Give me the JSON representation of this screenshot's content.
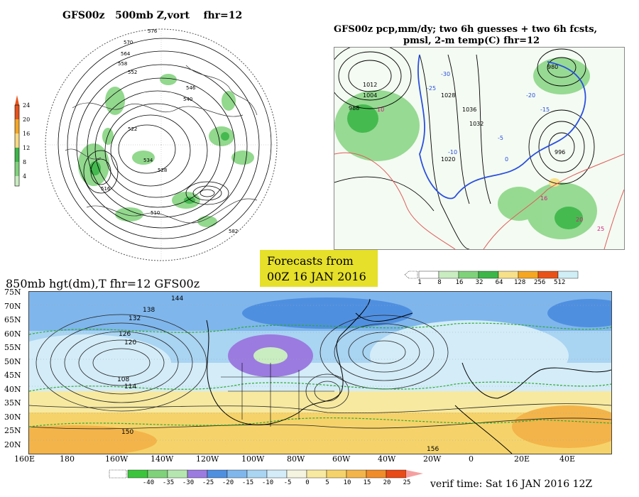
{
  "panel_500mb": {
    "title_a": "GFS00z",
    "title_b": "500mb Z,vort",
    "title_c": "fhr=12",
    "scale_labels": [
      "24",
      "20",
      "16",
      "12",
      "8",
      "4"
    ],
    "scale_colors": [
      "#e8521a",
      "#f5a623",
      "#f7d980",
      "#3cb648",
      "#7fd27a",
      "#c9ecc0"
    ],
    "contour_labels": [
      "576",
      "570",
      "564",
      "558",
      "552",
      "546",
      "540",
      "534",
      "528",
      "522",
      "516",
      "510",
      "582"
    ]
  },
  "panel_precip": {
    "title_line1": "GFS00z pcp,mm/dy; two 6h guesses + two 6h fcsts,",
    "title_line2": "pmsl, 2-m temp(C)  fhr=12",
    "pressure_labels": [
      "1012",
      "1004",
      "996",
      "988",
      "980",
      "1020",
      "1028",
      "1032",
      "1036"
    ],
    "temp_labels": [
      "-30",
      "-25",
      "-20",
      "-15",
      "-10",
      "-5",
      "0",
      "10",
      "16",
      "20",
      "25"
    ],
    "scale_labels": [
      "1",
      "8",
      "16",
      "32",
      "64",
      "128",
      "256",
      "512"
    ],
    "scale_colors": [
      "#ffffff",
      "#c9ecc0",
      "#7fd27a",
      "#3cb648",
      "#f7e08a",
      "#f5a623",
      "#e8521a",
      "#cfeef5"
    ]
  },
  "forecast_box": {
    "line1": "Forecasts from",
    "line2": "00Z 16 JAN 2016"
  },
  "panel_850mb": {
    "title": "850mb hgt(dm),T  fhr=12 GFS00z",
    "lat_labels": [
      "75N",
      "70N",
      "65N",
      "60N",
      "55N",
      "50N",
      "45N",
      "40N",
      "35N",
      "30N",
      "25N",
      "20N"
    ],
    "lon_labels": [
      "160E",
      "180",
      "160W",
      "140W",
      "120W",
      "100W",
      "80W",
      "60W",
      "40W",
      "20W",
      "0",
      "20E",
      "40E"
    ],
    "height_labels": [
      "144",
      "138",
      "132",
      "126",
      "120",
      "108",
      "114",
      "150",
      "156"
    ],
    "scale_labels": [
      "-40",
      "-35",
      "-30",
      "-25",
      "-20",
      "-15",
      "-10",
      "-5",
      "0",
      "5",
      "10",
      "15",
      "20",
      "25"
    ],
    "scale_colors": [
      "#3cc53c",
      "#7fd27a",
      "#b5e6b0",
      "#9b7be0",
      "#4f8fe0",
      "#7fb6ec",
      "#a9d4f2",
      "#d3ecf8",
      "#f4f4e0",
      "#f7e9a0",
      "#f5d36a",
      "#f3b44a",
      "#f08c2a",
      "#e84a18"
    ]
  },
  "verif_time": "verif time: Sat 16 JAN 2016 12Z"
}
